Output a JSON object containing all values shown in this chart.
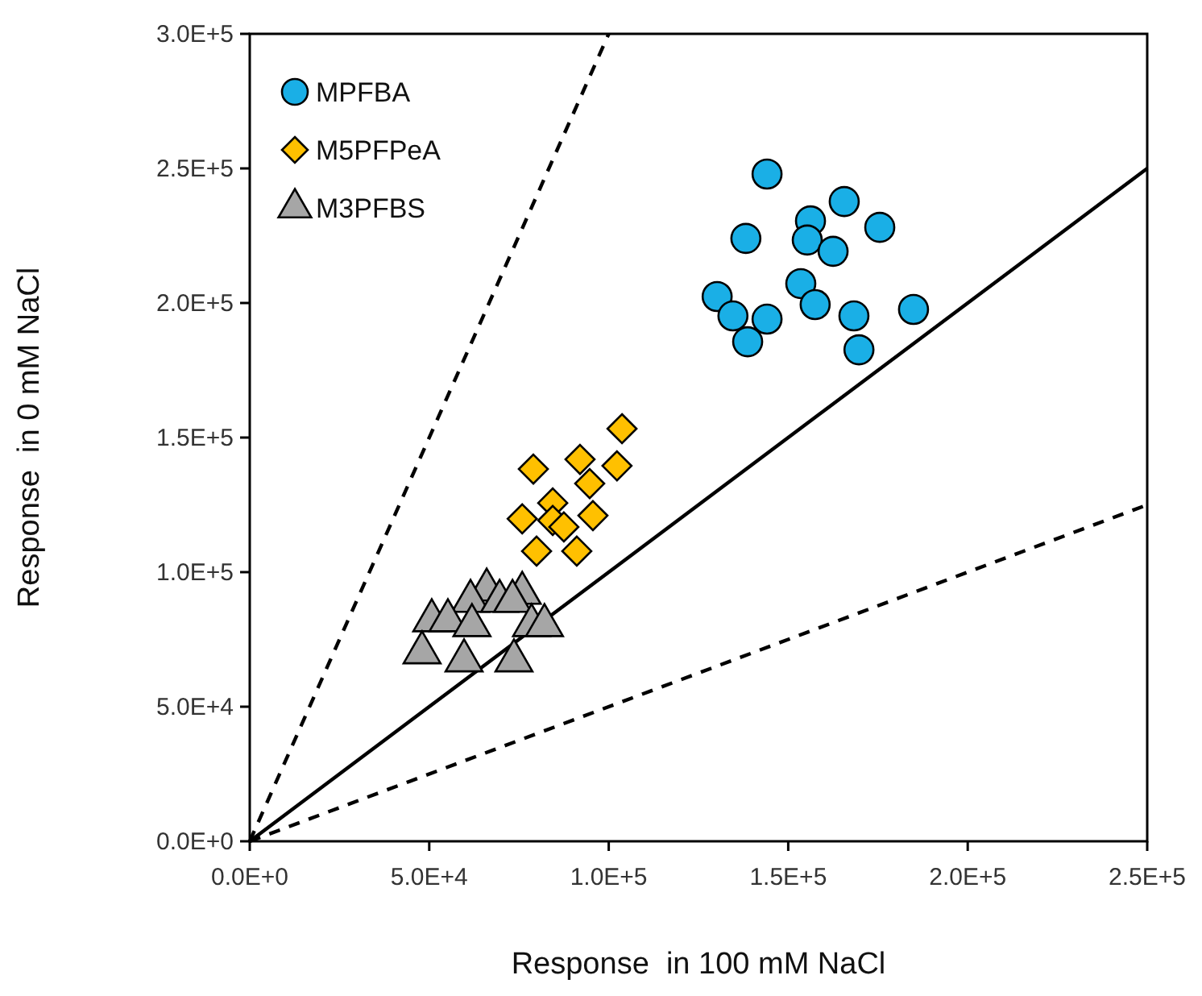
{
  "chart_data": {
    "type": "scatter",
    "xlabel": "Response  in 100 mM NaCl",
    "ylabel": "Response  in 0 mM NaCl",
    "xlim": [
      0,
      250000
    ],
    "ylim": [
      0,
      300000
    ],
    "xticks": [
      {
        "value": 0,
        "label": "0.0E+0"
      },
      {
        "value": 50000,
        "label": "5.0E+4"
      },
      {
        "value": 100000,
        "label": "1.0E+5"
      },
      {
        "value": 150000,
        "label": "1.5E+5"
      },
      {
        "value": 200000,
        "label": "2.0E+5"
      },
      {
        "value": 250000,
        "label": "2.5E+5"
      }
    ],
    "yticks": [
      {
        "value": 0,
        "label": "0.0E+0"
      },
      {
        "value": 50000,
        "label": "5.0E+4"
      },
      {
        "value": 100000,
        "label": "1.0E+5"
      },
      {
        "value": 150000,
        "label": "1.5E+5"
      },
      {
        "value": 200000,
        "label": "2.0E+5"
      },
      {
        "value": 250000,
        "label": "2.5E+5"
      },
      {
        "value": 300000,
        "label": "3.0E+5"
      }
    ],
    "grid": false,
    "legend": "top left",
    "series": [
      {
        "type": "line",
        "color": "#000000",
        "line_style": "solid",
        "x": [
          0,
          250000
        ],
        "values": [
          0,
          250000
        ]
      },
      {
        "type": "line",
        "color": "#000000",
        "line_style": "dashed",
        "x": [
          0,
          100000
        ],
        "values": [
          0,
          300000
        ]
      },
      {
        "type": "line",
        "color": "#000000",
        "line_style": "dashed",
        "x": [
          0,
          250000
        ],
        "values": [
          0,
          125000
        ]
      },
      {
        "name": "MPFBA",
        "color": "#1aafe6",
        "marker": "circle",
        "x": [
          144100,
          165600,
          138200,
          156200,
          155300,
          175500,
          162500,
          153500,
          130200,
          157500,
          134600,
          144100,
          138700,
          168300,
          169700,
          184900
        ],
        "values": [
          247900,
          237700,
          224000,
          230500,
          223400,
          228100,
          219200,
          207200,
          202400,
          199400,
          195200,
          194000,
          185600,
          195200,
          182600,
          197600
        ]
      },
      {
        "name": "M5PFPeA",
        "color": "#ffc000",
        "marker": "diamond",
        "x": [
          103700,
          79000,
          92000,
          102300,
          94700,
          84400,
          95600,
          75900,
          84400,
          79900,
          91100,
          87500
        ],
        "values": [
          153300,
          138300,
          141900,
          139500,
          132900,
          125700,
          121000,
          119800,
          119200,
          107800,
          107800,
          116800
        ]
      },
      {
        "name": "M3PFBS",
        "color": "#a6a6a6",
        "marker": "triangle",
        "x": [
          66000,
          61500,
          69600,
          75900,
          73200,
          50700,
          55200,
          61900,
          78500,
          82100,
          48000,
          59700,
          73600
        ],
        "values": [
          93400,
          89200,
          89200,
          92200,
          89200,
          82000,
          82000,
          80200,
          80200,
          80200,
          70100,
          67100,
          67100
        ]
      }
    ]
  }
}
